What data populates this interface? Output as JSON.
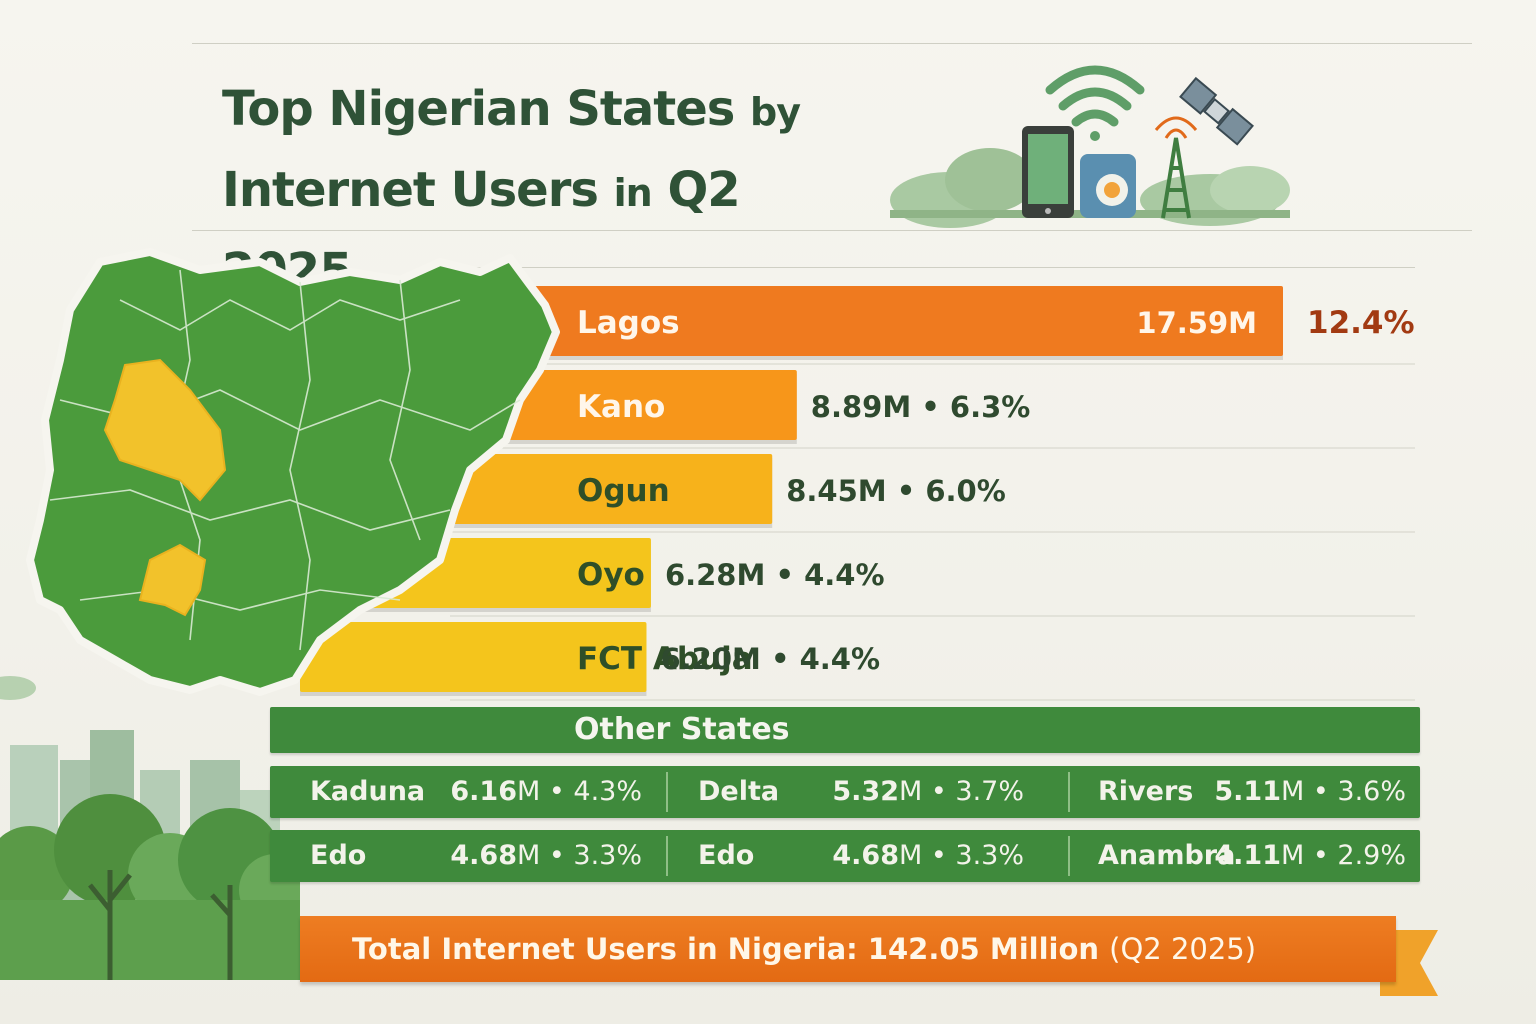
{
  "title": {
    "line1_main": "Top Nigerian States",
    "line1_small": "by",
    "line2_main": "Internet Users",
    "line2_small": "in",
    "line2_end": "Q2 2025"
  },
  "colors": {
    "orange": "#ef7a1f",
    "orange_light": "#f7961a",
    "amber": "#f7b21b",
    "yellow": "#f4c51c",
    "green": "#3f8a3c",
    "map_green": "#4b9b3c",
    "highlight_yellow": "#f2c22b",
    "title_green": "#2f5237"
  },
  "decor_icons": [
    "wifi-icon",
    "smartphone-icon",
    "tablet-icon",
    "cell-tower-icon",
    "satellite-icon",
    "nigeria-map",
    "city-skyline",
    "trees"
  ],
  "chart_data": {
    "type": "bar",
    "orientation": "horizontal",
    "unit_suffix": "M",
    "categories": [
      "Lagos",
      "Kano",
      "Ogun",
      "Oyo",
      "FCT Abuja"
    ],
    "values": [
      17.59,
      8.89,
      8.45,
      6.28,
      6.2
    ],
    "shares": [
      12.4,
      6.3,
      6.0,
      4.4,
      4.4
    ],
    "value_labels": [
      "17.59",
      "8.89",
      "8.45",
      "6.28",
      "6.20"
    ],
    "share_labels": [
      "12.4%",
      "6.3%",
      "6.0%",
      "4.4%",
      "4.4%"
    ]
  },
  "other_states": {
    "header": "Other States",
    "rows": [
      [
        {
          "name": "Kaduna",
          "value": "6.16",
          "share": "4.3%"
        },
        {
          "name": "Delta",
          "value": "5.32",
          "share": "3.7%"
        },
        {
          "name": "Rivers",
          "value": "5.11",
          "share": "3.6%"
        }
      ],
      [
        {
          "name": "Edo",
          "value": "4.68",
          "share": "3.3%"
        },
        {
          "name": "Edo",
          "value": "4.68",
          "share": "3.3%"
        },
        {
          "name": "Anambra",
          "value": "4.11",
          "share": "2.9%"
        }
      ]
    ]
  },
  "total_banner": {
    "main": "Total Internet Users in Nigeria: 142.05 Million",
    "sub": "(Q2 2025)"
  }
}
